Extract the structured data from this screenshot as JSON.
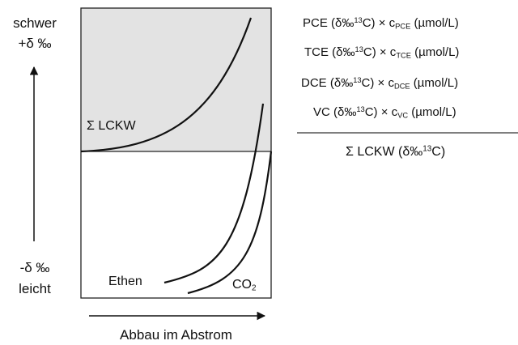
{
  "diagram": {
    "y_axis": {
      "top_label_1": "schwer",
      "top_label_2": "+δ ‰",
      "bottom_label_1": "-δ ‰",
      "bottom_label_2": "leicht"
    },
    "x_axis": {
      "label": "Abbau im Abstrom"
    },
    "curves": {
      "sum": "Σ LCKW",
      "ethen": "Ethen",
      "co2_main": "CO",
      "co2_sub": "2"
    }
  },
  "formula": {
    "rows": [
      {
        "species": "PCE",
        "iso": "(δ‰",
        "mass": "13",
        "elem": "C) × c",
        "sub": "PCE",
        "unit": "(µmol/L)"
      },
      {
        "species": "TCE",
        "iso": "(δ‰",
        "mass": "13",
        "elem": "C) × c",
        "sub": "TCE",
        "unit": "(µmol/L)"
      },
      {
        "species": "DCE",
        "iso": "(δ‰",
        "mass": "13",
        "elem": "C) × c",
        "sub": "DCE",
        "unit": "(µmol/L)"
      },
      {
        "species": "VC",
        "iso": "(δ‰",
        "mass": "13",
        "elem": "C) × c",
        "sub": "VC",
        "unit": "(µmol/L)"
      }
    ],
    "result": {
      "prefix": "Σ LCKW (δ‰",
      "mass": "13",
      "suffix": "C)"
    }
  },
  "colors": {
    "upper_region": "#e3e3e3",
    "line": "#111111"
  }
}
